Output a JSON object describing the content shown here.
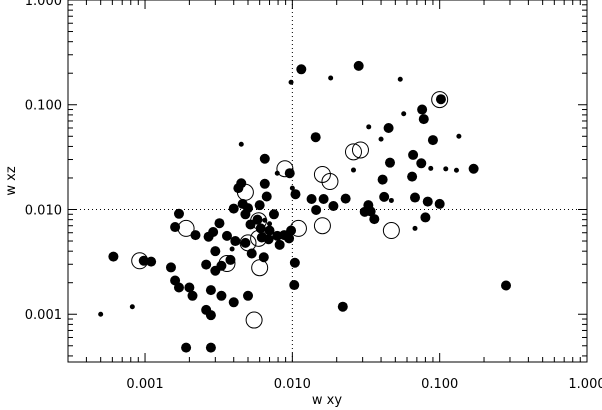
{
  "chart_data": {
    "type": "scatter",
    "title": "",
    "xlabel": "w xy",
    "ylabel": "w xz",
    "xscale": "log",
    "yscale": "log",
    "xlim": [
      0.0003,
      1.0
    ],
    "ylim": [
      0.00035,
      1.0
    ],
    "x_ticks": [
      {
        "value": 0.001,
        "label": "0.001"
      },
      {
        "value": 0.01,
        "label": "0.010"
      },
      {
        "value": 0.1,
        "label": "0.100"
      },
      {
        "value": 1.0,
        "label": "1.000"
      }
    ],
    "y_ticks": [
      {
        "value": 0.001,
        "label": "0.001"
      },
      {
        "value": 0.01,
        "label": "0.010"
      },
      {
        "value": 0.1,
        "label": "0.100"
      },
      {
        "value": 1.0,
        "label": "1.000"
      }
    ],
    "grid": "dotted reference lines at x=0.010 and y=0.010",
    "marker_color": "#000000",
    "series": [
      {
        "marker": "large filled circle",
        "points": [
          [
            0.00061,
            0.00355
          ],
          [
            0.00098,
            0.00324
          ],
          [
            0.0011,
            0.00318
          ],
          [
            0.0015,
            0.0028
          ],
          [
            0.0016,
            0.0021
          ],
          [
            0.0017,
            0.0018
          ],
          [
            0.0016,
            0.0068
          ],
          [
            0.0017,
            0.0091
          ],
          [
            0.0019,
            0.00048
          ],
          [
            0.002,
            0.0018
          ],
          [
            0.0021,
            0.0015
          ],
          [
            0.0022,
            0.0057
          ],
          [
            0.0026,
            0.00298
          ],
          [
            0.0026,
            0.0011
          ],
          [
            0.0027,
            0.0055
          ],
          [
            0.0028,
            0.0017
          ],
          [
            0.0028,
            0.00098
          ],
          [
            0.0028,
            0.00048
          ],
          [
            0.0029,
            0.0061
          ],
          [
            0.003,
            0.0026
          ],
          [
            0.003,
            0.004
          ],
          [
            0.0032,
            0.0074
          ],
          [
            0.0033,
            0.0015
          ],
          [
            0.0033,
            0.0029
          ],
          [
            0.0036,
            0.0056
          ],
          [
            0.0038,
            0.0033
          ],
          [
            0.004,
            0.0102
          ],
          [
            0.004,
            0.0013
          ],
          [
            0.0041,
            0.005
          ],
          [
            0.0043,
            0.016
          ],
          [
            0.0045,
            0.0178
          ],
          [
            0.0046,
            0.0113
          ],
          [
            0.0048,
            0.0048
          ],
          [
            0.0048,
            0.009
          ],
          [
            0.005,
            0.0015
          ],
          [
            0.005,
            0.0103
          ],
          [
            0.0052,
            0.0072
          ],
          [
            0.0053,
            0.0038
          ],
          [
            0.0058,
            0.008
          ],
          [
            0.006,
            0.011
          ],
          [
            0.0061,
            0.0066
          ],
          [
            0.0062,
            0.0054
          ],
          [
            0.0064,
            0.0035
          ],
          [
            0.0065,
            0.0305
          ],
          [
            0.0065,
            0.0176
          ],
          [
            0.0067,
            0.0133
          ],
          [
            0.0069,
            0.0052
          ],
          [
            0.007,
            0.0063
          ],
          [
            0.0075,
            0.009
          ],
          [
            0.0079,
            0.0056
          ],
          [
            0.0082,
            0.0046
          ],
          [
            0.0088,
            0.0057
          ],
          [
            0.0095,
            0.0053
          ],
          [
            0.0096,
            0.0222
          ],
          [
            0.0098,
            0.0063
          ],
          [
            0.0103,
            0.0019
          ],
          [
            0.0104,
            0.0031
          ],
          [
            0.0105,
            0.014
          ],
          [
            0.0115,
            0.218
          ],
          [
            0.0135,
            0.0126
          ],
          [
            0.0144,
            0.049
          ],
          [
            0.0145,
            0.0099
          ],
          [
            0.0163,
            0.0126
          ],
          [
            0.019,
            0.0108
          ],
          [
            0.022,
            0.00118
          ],
          [
            0.023,
            0.0127
          ],
          [
            0.0282,
            0.235
          ],
          [
            0.031,
            0.0095
          ],
          [
            0.0328,
            0.011
          ],
          [
            0.034,
            0.0096
          ],
          [
            0.036,
            0.0081
          ],
          [
            0.041,
            0.0193
          ],
          [
            0.042,
            0.0132
          ],
          [
            0.045,
            0.06
          ],
          [
            0.046,
            0.028
          ],
          [
            0.065,
            0.0206
          ],
          [
            0.066,
            0.0332
          ],
          [
            0.068,
            0.013
          ],
          [
            0.075,
            0.0276
          ],
          [
            0.076,
            0.09
          ],
          [
            0.078,
            0.073
          ],
          [
            0.08,
            0.0084
          ],
          [
            0.083,
            0.0119
          ],
          [
            0.09,
            0.046
          ],
          [
            0.1,
            0.0113
          ],
          [
            0.102,
            0.113
          ],
          [
            0.17,
            0.0245
          ],
          [
            0.282,
            0.00188
          ]
        ]
      },
      {
        "marker": "small filled circle",
        "points": [
          [
            0.0005,
            0.001
          ],
          [
            0.00082,
            0.00118
          ],
          [
            0.0039,
            0.0042
          ],
          [
            0.0045,
            0.042
          ],
          [
            0.0065,
            0.0079
          ],
          [
            0.007,
            0.0073
          ],
          [
            0.0079,
            0.0222
          ],
          [
            0.0098,
            0.164
          ],
          [
            0.01,
            0.016
          ],
          [
            0.0182,
            0.18
          ],
          [
            0.023,
            0.0129
          ],
          [
            0.026,
            0.0238
          ],
          [
            0.033,
            0.0615
          ],
          [
            0.04,
            0.047
          ],
          [
            0.047,
            0.0122
          ],
          [
            0.054,
            0.175
          ],
          [
            0.057,
            0.082
          ],
          [
            0.068,
            0.0066
          ],
          [
            0.087,
            0.0247
          ],
          [
            0.11,
            0.0244
          ],
          [
            0.13,
            0.0237
          ],
          [
            0.135,
            0.05
          ]
        ]
      },
      {
        "marker": "open circle",
        "points": [
          [
            0.00092,
            0.00324
          ],
          [
            0.0019,
            0.0066
          ],
          [
            0.0036,
            0.00305
          ],
          [
            0.0048,
            0.0146
          ],
          [
            0.005,
            0.0048
          ],
          [
            0.0055,
            0.00088
          ],
          [
            0.0059,
            0.0078
          ],
          [
            0.0059,
            0.0053
          ],
          [
            0.006,
            0.00278
          ],
          [
            0.0089,
            0.0245
          ],
          [
            0.011,
            0.0066
          ],
          [
            0.016,
            0.007
          ],
          [
            0.016,
            0.0216
          ],
          [
            0.018,
            0.0185
          ],
          [
            0.026,
            0.0355
          ],
          [
            0.029,
            0.037
          ],
          [
            0.047,
            0.0063
          ],
          [
            0.1,
            0.112
          ]
        ]
      }
    ]
  }
}
